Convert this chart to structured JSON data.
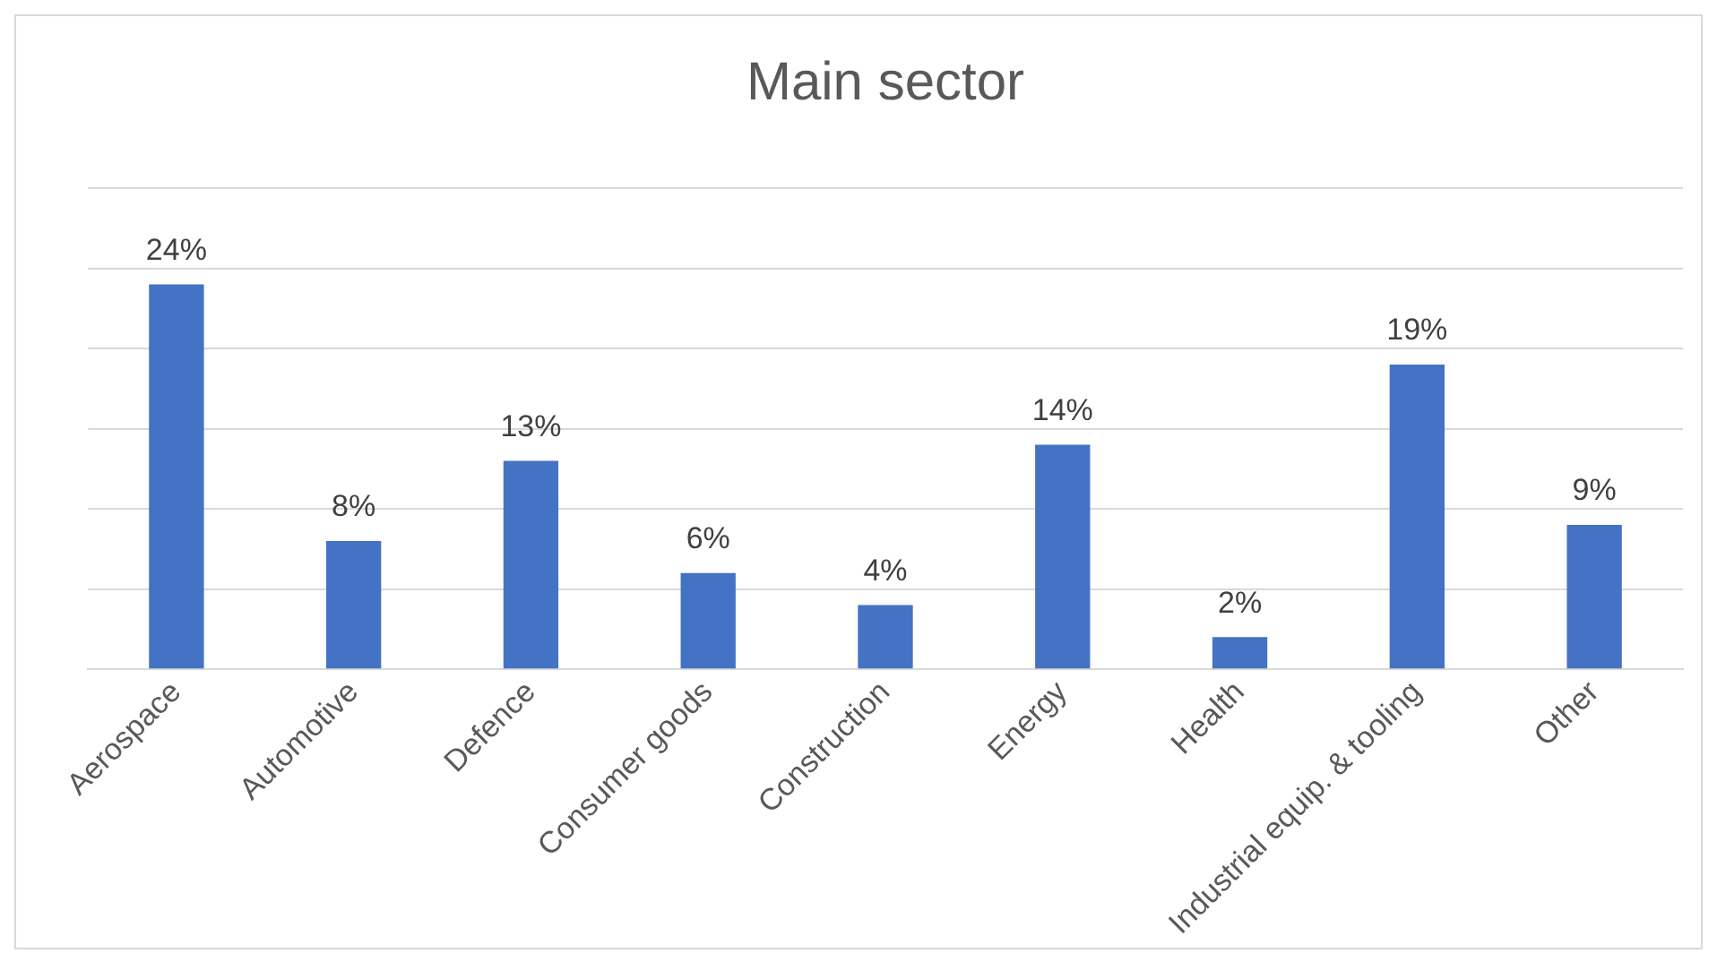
{
  "chart_data": {
    "type": "bar",
    "title": "Main sector",
    "categories": [
      "Aerospace",
      "Automotive",
      "Defence",
      "Consumer goods",
      "Construction",
      "Energy",
      "Health",
      "Industrial equip. & tooling",
      "Other"
    ],
    "values": [
      24,
      8,
      13,
      6,
      4,
      14,
      2,
      19,
      9
    ],
    "value_labels": [
      "24%",
      "8%",
      "13%",
      "6%",
      "4%",
      "14%",
      "2%",
      "19%",
      "9%"
    ],
    "color": "#4472c4",
    "ylim": [
      0,
      30
    ],
    "yticks": [
      {
        "value": 0,
        "label": null
      },
      {
        "value": 5,
        "label": null
      },
      {
        "value": 10,
        "label": null
      },
      {
        "value": 15,
        "label": null
      },
      {
        "value": 20,
        "label": null
      },
      {
        "value": 25,
        "label": null
      },
      {
        "value": 30,
        "label": null
      }
    ],
    "grid": "y",
    "tick_labels": "x",
    "legend": false
  }
}
